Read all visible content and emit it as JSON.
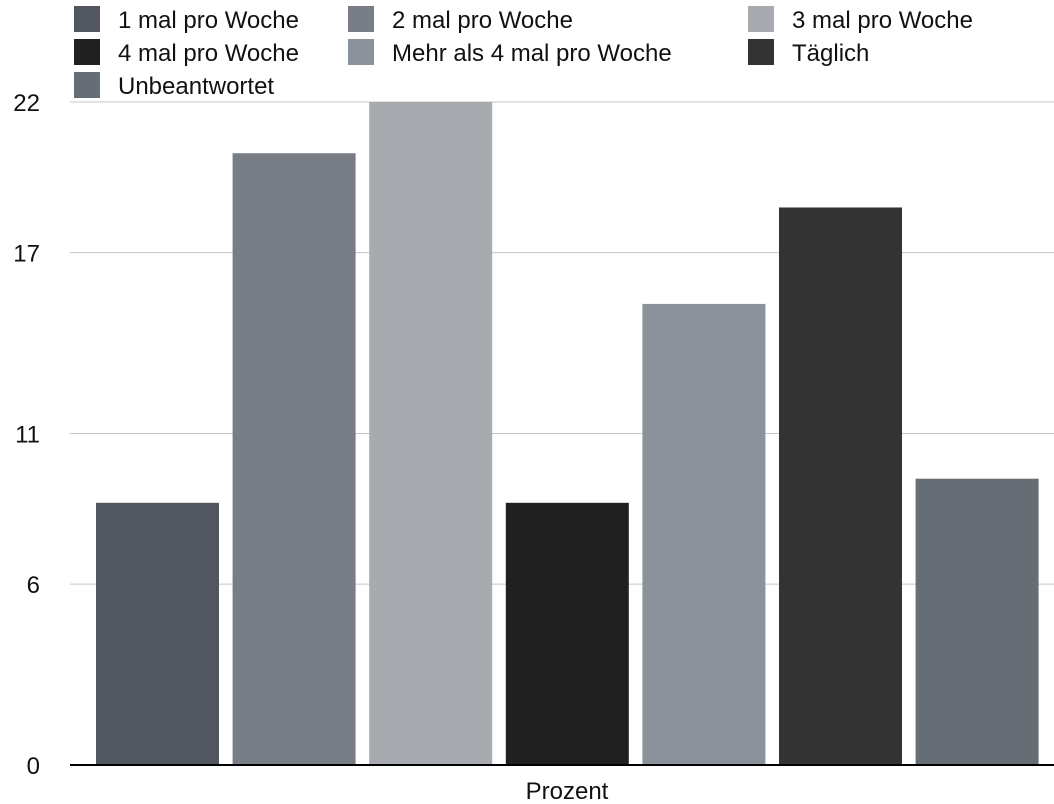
{
  "chart_data": {
    "type": "bar",
    "categories": [
      "Prozent"
    ],
    "xlabel": "Prozent",
    "ylabel": "",
    "ylim": [
      0,
      22
    ],
    "yticks": [
      0,
      6,
      11,
      17,
      22
    ],
    "grid": true,
    "legend_position": "top",
    "series": [
      {
        "name": "1 mal pro Woche",
        "values": [
          8.7
        ],
        "color": "#52575f"
      },
      {
        "name": "2 mal pro Woche",
        "values": [
          20.3
        ],
        "color": "#787d86"
      },
      {
        "name": "3 mal pro Woche",
        "values": [
          22.4
        ],
        "color": "#a7aaae"
      },
      {
        "name": "4 mal pro Woche",
        "values": [
          8.7
        ],
        "color": "#202020"
      },
      {
        "name": "Mehr als 4 mal pro Woche",
        "values": [
          15.3
        ],
        "color": "#8c929b"
      },
      {
        "name": "Täglich",
        "values": [
          18.5
        ],
        "color": "#333333"
      },
      {
        "name": "Unbeantwortet",
        "values": [
          9.5
        ],
        "color": "#676d74"
      }
    ]
  }
}
